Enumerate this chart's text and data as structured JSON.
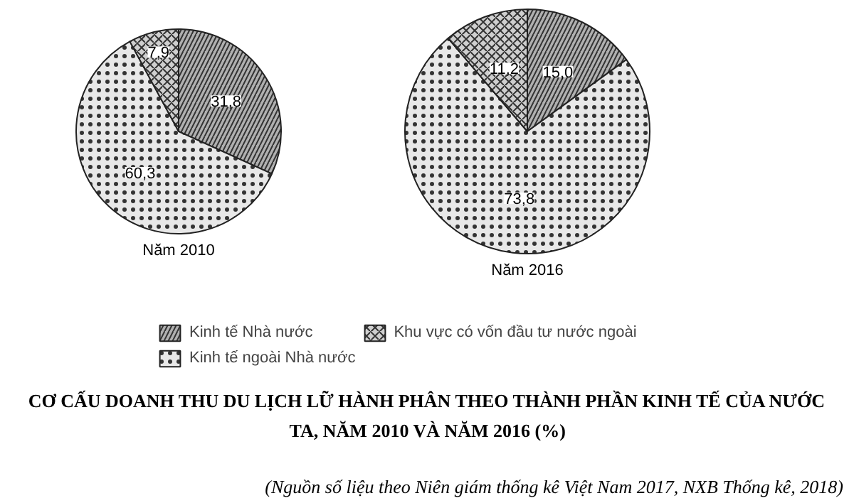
{
  "chart_data": [
    {
      "type": "pie",
      "title": "Năm 2010",
      "categories": [
        "Kinh tế Nhà nước",
        "Kinh tế ngoài Nhà nước",
        "Khu vực có vốn đầu tư nước ngoài"
      ],
      "values": [
        31.8,
        60.3,
        7.9
      ],
      "value_labels": [
        "31,8",
        "60,3",
        "7,9"
      ],
      "colors": [
        "#b0b0b0",
        "#e8e8e8",
        "#cfcfcf"
      ],
      "legend": "bottom",
      "annotations": [
        "CƠ CẤU DOANH THU DU LỊCH LỮ HÀNH PHÂN THEO THÀNH PHẦN KINH TẾ CỦA NƯỚC TA, NĂM 2010 VÀ NĂM 2016 (%)",
        "(Nguồn số liệu theo Niên giám thống kê Việt Nam 2017, NXB Thống kê, 2018)"
      ]
    },
    {
      "type": "pie",
      "title": "Năm 2016",
      "categories": [
        null,
        null,
        null
      ],
      "values": [
        15.0,
        73.8,
        11.2
      ],
      "value_labels": [
        "15,0",
        "73,8",
        "11,2"
      ],
      "colors": [
        "#b0b0b0",
        "#e8e8e8",
        "#cfcfcf"
      ]
    }
  ]
}
